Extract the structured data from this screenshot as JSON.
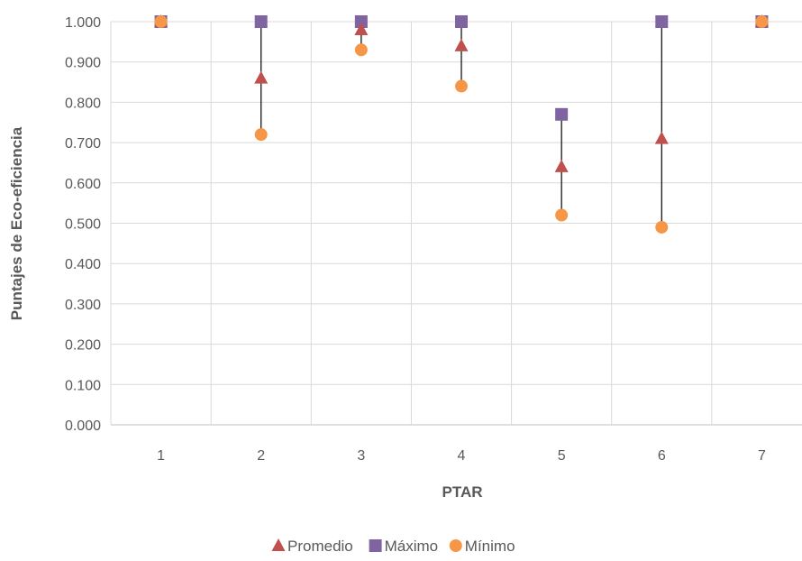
{
  "chart_data": {
    "type": "scatter",
    "xlabel": "PTAR",
    "ylabel": "Puntajes de Eco-eficiencia",
    "categories": [
      "1",
      "2",
      "3",
      "4",
      "5",
      "6",
      "7"
    ],
    "ylim": [
      0,
      1
    ],
    "yticks": [
      "0.000",
      "0.100",
      "0.200",
      "0.300",
      "0.400",
      "0.500",
      "0.600",
      "0.700",
      "0.800",
      "0.900",
      "1.000"
    ],
    "grid": true,
    "legend_position": "bottom",
    "series": [
      {
        "name": "Promedio",
        "marker": "triangle",
        "color": "#c0504d",
        "values": [
          1.0,
          0.86,
          0.98,
          0.94,
          0.64,
          0.71,
          1.0
        ]
      },
      {
        "name": "Máximo",
        "marker": "square",
        "color": "#8064a2",
        "values": [
          1.0,
          1.0,
          1.0,
          1.0,
          0.77,
          1.0,
          1.0
        ]
      },
      {
        "name": "Mínimo",
        "marker": "circle",
        "color": "#f79646",
        "values": [
          1.0,
          0.72,
          0.93,
          0.84,
          0.52,
          0.49,
          1.0
        ]
      }
    ]
  }
}
